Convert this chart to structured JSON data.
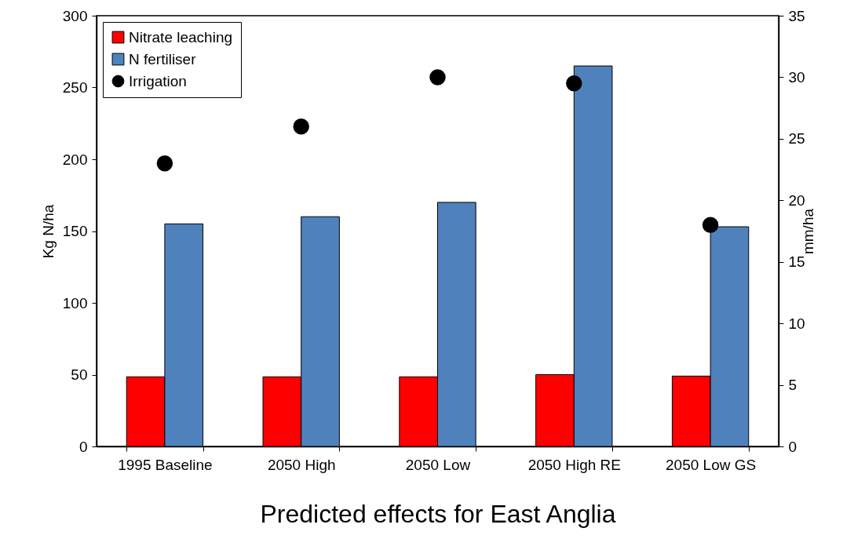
{
  "chart_data": {
    "type": "bar",
    "xlabel": "Predicted effects for East Anglia",
    "ylabel": "Kg N/ha",
    "y2label": "mm/ha",
    "categories": [
      "1995 Baseline",
      "2050 High",
      "2050 Low",
      "2050 High RE",
      "2050 Low GS"
    ],
    "series": [
      {
        "name": "Nitrate leaching",
        "color": "#ff0000",
        "values": [
          48.5,
          48.5,
          48.5,
          50,
          49
        ]
      },
      {
        "name": "N fertiliser",
        "color": "#4f81bd",
        "values": [
          155,
          160,
          170,
          265,
          153
        ]
      },
      {
        "name": "Irrigation",
        "type": "scatter",
        "axis": "y2",
        "color": "#000000",
        "values": [
          23,
          26,
          30,
          29.5,
          18
        ]
      }
    ],
    "ylim": [
      0,
      300
    ],
    "yticks": [
      0,
      50,
      100,
      150,
      200,
      250,
      300
    ],
    "y2lim": [
      0,
      35
    ],
    "y2ticks": [
      0,
      5,
      10,
      15,
      20,
      25,
      30,
      35
    ],
    "legend": "top left",
    "marker": "circle",
    "grid": false
  }
}
